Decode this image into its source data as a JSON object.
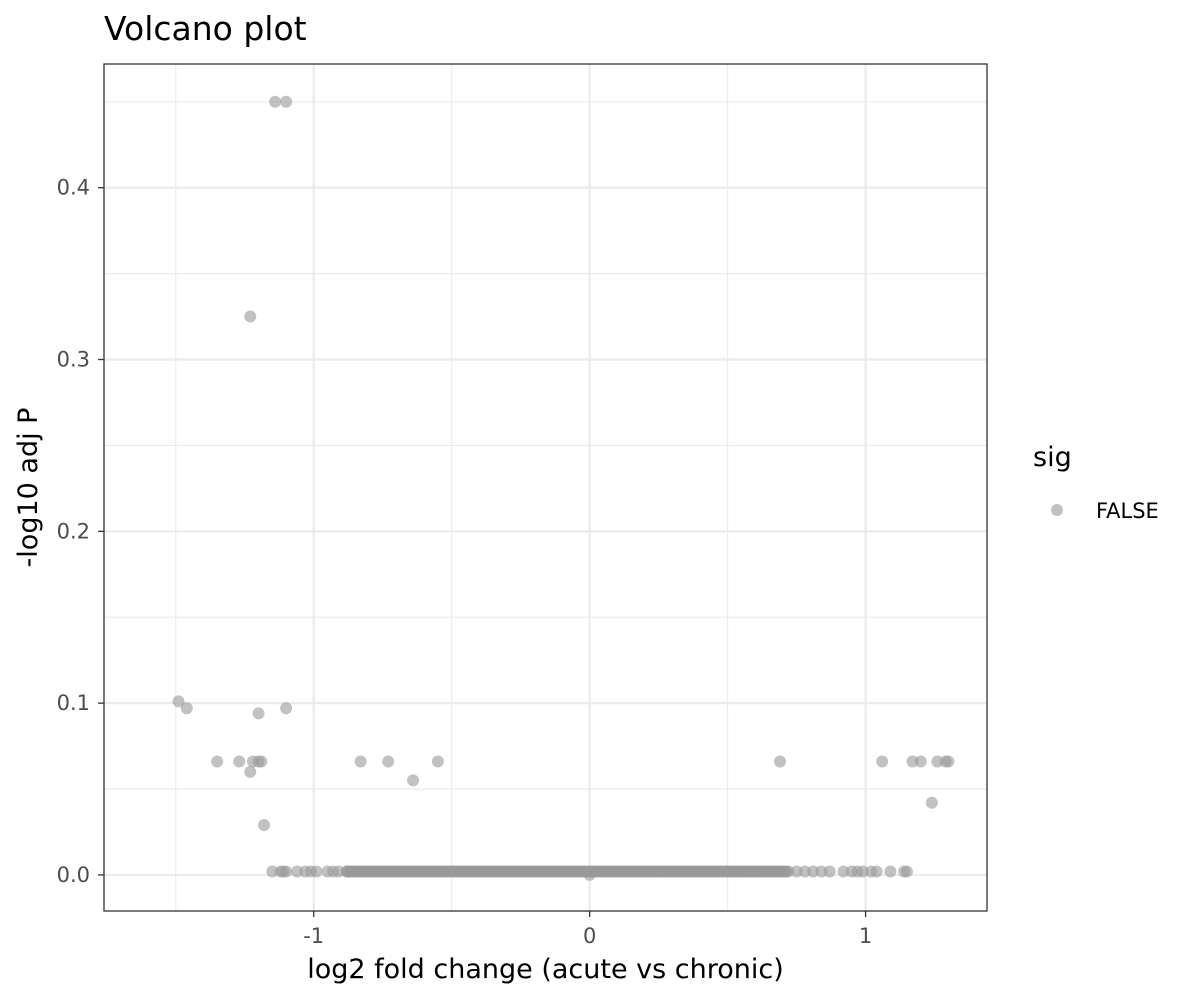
{
  "chart_data": {
    "type": "scatter",
    "title": "Volcano plot",
    "xlabel": "log2 fold change (acute vs chronic)",
    "ylabel": "-log10 adj P",
    "xlim": [
      -1.76,
      1.44
    ],
    "ylim": [
      -0.021,
      0.472
    ],
    "x_ticks": [
      -1,
      0,
      1
    ],
    "x_tick_labels": [
      "-1",
      "0",
      "1"
    ],
    "x_minor_ticks": [
      -1.5,
      -0.5,
      0.5
    ],
    "y_ticks": [
      0.0,
      0.1,
      0.2,
      0.3,
      0.4
    ],
    "y_tick_labels": [
      "0.0",
      "0.1",
      "0.2",
      "0.3",
      "0.4"
    ],
    "y_minor_ticks": [
      0.05,
      0.15,
      0.25,
      0.35,
      0.45
    ],
    "grid": true,
    "legend": {
      "title": "sig",
      "position": "right",
      "entries": [
        {
          "label": "FALSE",
          "color": "#999999"
        }
      ]
    },
    "point_color": "#999999",
    "point_alpha": 0.6,
    "series": [
      {
        "name": "FALSE",
        "points": [
          [
            -1.14,
            0.45
          ],
          [
            -1.1,
            0.45
          ],
          [
            -1.23,
            0.325
          ],
          [
            -1.49,
            0.101
          ],
          [
            -1.46,
            0.097
          ],
          [
            -1.1,
            0.097
          ],
          [
            -1.2,
            0.094
          ],
          [
            -1.35,
            0.066
          ],
          [
            -1.27,
            0.066
          ],
          [
            -1.22,
            0.066
          ],
          [
            -1.19,
            0.066
          ],
          [
            -1.2,
            0.066
          ],
          [
            -0.83,
            0.066
          ],
          [
            -0.73,
            0.066
          ],
          [
            -0.55,
            0.066
          ],
          [
            -1.23,
            0.06
          ],
          [
            -0.64,
            0.055
          ],
          [
            -1.18,
            0.029
          ],
          [
            0.69,
            0.066
          ],
          [
            1.06,
            0.066
          ],
          [
            1.17,
            0.066
          ],
          [
            1.2,
            0.066
          ],
          [
            1.26,
            0.066
          ],
          [
            1.29,
            0.066
          ],
          [
            1.3,
            0.066
          ],
          [
            1.24,
            0.042
          ],
          [
            -1.15,
            0.002
          ],
          [
            -1.12,
            0.002
          ],
          [
            -1.11,
            0.002
          ],
          [
            -1.1,
            0.002
          ],
          [
            -1.06,
            0.002
          ],
          [
            -1.03,
            0.002
          ],
          [
            -1.01,
            0.002
          ],
          [
            -0.99,
            0.002
          ],
          [
            -0.95,
            0.002
          ],
          [
            -0.93,
            0.002
          ],
          [
            -0.91,
            0.002
          ],
          [
            -0.88,
            0.002
          ],
          [
            0.75,
            0.002
          ],
          [
            0.78,
            0.002
          ],
          [
            0.81,
            0.002
          ],
          [
            0.84,
            0.002
          ],
          [
            0.87,
            0.002
          ],
          [
            0.92,
            0.002
          ],
          [
            0.95,
            0.002
          ],
          [
            0.97,
            0.002
          ],
          [
            0.99,
            0.002
          ],
          [
            1.02,
            0.002
          ],
          [
            1.04,
            0.002
          ],
          [
            1.09,
            0.002
          ],
          [
            1.14,
            0.002
          ],
          [
            1.15,
            0.002
          ],
          [
            0.0,
            0.0
          ]
        ],
        "dense_band": {
          "x_from": -0.88,
          "x_to": 0.72,
          "y": 0.002
        }
      }
    ]
  }
}
